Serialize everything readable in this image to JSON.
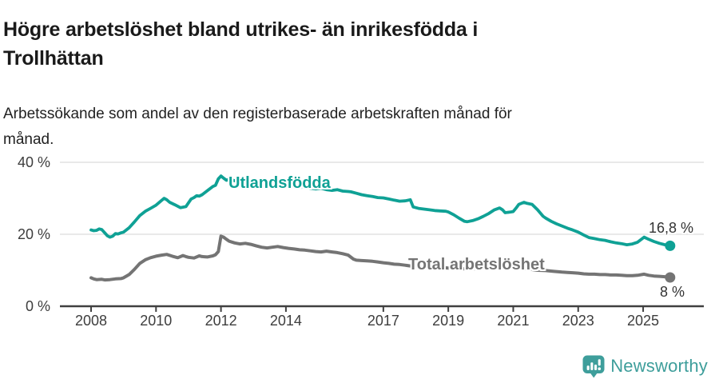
{
  "header": {
    "title_line1": "Högre arbetslöshet bland utrikes- än inrikesfödda i",
    "title_line2": "Trollhättan",
    "subtitle_line1": "Arbetssökande som andel av den registerbaserade arbetskraften månad för",
    "subtitle_line2": "månad."
  },
  "footer": {
    "brand": "Newsworthy",
    "logo_icon": "bar-chart-speech-bubble-icon",
    "brand_color": "#3e9e9b"
  },
  "colors": {
    "accent_teal": "#0fa195",
    "line_gray": "#747474",
    "axis": "#404040",
    "grid": "#e2e2e2",
    "tick_text": "#3d3d3d",
    "value_text": "#333333"
  },
  "chart_data": {
    "type": "line",
    "title": "Högre arbetslöshet bland utrikes- än inrikesfödda i Trollhättan",
    "subtitle": "Arbetssökande som andel av den registerbaserade arbetskraften månad för månad.",
    "xlabel": "",
    "ylabel": "",
    "x_unit": "decimal_year",
    "xlim": [
      2007.05,
      2026.85
    ],
    "ylim": [
      0,
      42
    ],
    "grid": "horizontal-only",
    "legend_position": "inline-labels",
    "y_ticks": [
      {
        "value": 0,
        "label": "0 %"
      },
      {
        "value": 20,
        "label": "20 %"
      },
      {
        "value": 40,
        "label": "40 %"
      }
    ],
    "x_ticks": [
      {
        "value": 2008,
        "label": "2008"
      },
      {
        "value": 2010,
        "label": "2010"
      },
      {
        "value": 2012,
        "label": "2012"
      },
      {
        "value": 2014,
        "label": "2014"
      },
      {
        "value": 2017,
        "label": "2017"
      },
      {
        "value": 2019,
        "label": "2019"
      },
      {
        "value": 2021,
        "label": "2021"
      },
      {
        "value": 2023,
        "label": "2023"
      },
      {
        "value": 2025,
        "label": "2025"
      }
    ],
    "grid_values": [
      20,
      40
    ],
    "series": [
      {
        "name": "Utlandsfödda",
        "color": "#0fa195",
        "stroke_width": 3.8,
        "end_label": "16,8 %",
        "end_value": 16.8,
        "points": [
          [
            2008.0,
            21.2
          ],
          [
            2008.08,
            21.0
          ],
          [
            2008.17,
            21.1
          ],
          [
            2008.25,
            21.5
          ],
          [
            2008.33,
            21.3
          ],
          [
            2008.42,
            20.4
          ],
          [
            2008.5,
            19.6
          ],
          [
            2008.58,
            19.2
          ],
          [
            2008.67,
            19.5
          ],
          [
            2008.75,
            20.2
          ],
          [
            2008.83,
            20.1
          ],
          [
            2008.92,
            20.4
          ],
          [
            2009.0,
            20.6
          ],
          [
            2009.17,
            21.8
          ],
          [
            2009.33,
            23.4
          ],
          [
            2009.5,
            25.2
          ],
          [
            2009.67,
            26.4
          ],
          [
            2009.83,
            27.2
          ],
          [
            2010.0,
            28.1
          ],
          [
            2010.17,
            29.4
          ],
          [
            2010.25,
            30.0
          ],
          [
            2010.33,
            29.6
          ],
          [
            2010.42,
            28.9
          ],
          [
            2010.58,
            28.2
          ],
          [
            2010.75,
            27.4
          ],
          [
            2010.92,
            27.7
          ],
          [
            2011.08,
            29.8
          ],
          [
            2011.17,
            30.2
          ],
          [
            2011.25,
            30.7
          ],
          [
            2011.33,
            30.6
          ],
          [
            2011.42,
            31.0
          ],
          [
            2011.58,
            32.1
          ],
          [
            2011.75,
            33.3
          ],
          [
            2011.83,
            33.6
          ],
          [
            2011.92,
            35.4
          ],
          [
            2012.0,
            36.2
          ],
          [
            2012.08,
            35.6
          ],
          [
            2012.17,
            35.0
          ],
          [
            2012.25,
            35.3
          ],
          [
            2012.42,
            34.9
          ],
          [
            2012.58,
            34.6
          ],
          [
            2012.75,
            34.8
          ],
          [
            2012.92,
            34.4
          ],
          [
            2013.08,
            34.6
          ],
          [
            2013.25,
            34.2
          ],
          [
            2013.42,
            33.9
          ],
          [
            2013.58,
            34.1
          ],
          [
            2013.75,
            33.7
          ],
          [
            2013.92,
            33.4
          ],
          [
            2014.08,
            33.6
          ],
          [
            2014.25,
            33.2
          ],
          [
            2014.42,
            33.0
          ],
          [
            2014.58,
            33.2
          ],
          [
            2014.75,
            32.8
          ],
          [
            2014.92,
            32.6
          ],
          [
            2015.08,
            32.8
          ],
          [
            2015.25,
            32.4
          ],
          [
            2015.42,
            32.2
          ],
          [
            2015.58,
            32.4
          ],
          [
            2015.75,
            32.0
          ],
          [
            2015.92,
            31.9
          ],
          [
            2016.0,
            31.8
          ],
          [
            2016.17,
            31.4
          ],
          [
            2016.33,
            31.0
          ],
          [
            2016.5,
            30.7
          ],
          [
            2016.67,
            30.5
          ],
          [
            2016.83,
            30.2
          ],
          [
            2017.0,
            30.1
          ],
          [
            2017.17,
            29.8
          ],
          [
            2017.33,
            29.5
          ],
          [
            2017.5,
            29.2
          ],
          [
            2017.67,
            29.3
          ],
          [
            2017.83,
            29.6
          ],
          [
            2017.92,
            27.6
          ],
          [
            2018.08,
            27.2
          ],
          [
            2018.25,
            27.0
          ],
          [
            2018.42,
            26.8
          ],
          [
            2018.58,
            26.6
          ],
          [
            2018.75,
            26.5
          ],
          [
            2018.92,
            26.4
          ],
          [
            2019.0,
            26.2
          ],
          [
            2019.17,
            25.4
          ],
          [
            2019.33,
            24.5
          ],
          [
            2019.5,
            23.6
          ],
          [
            2019.58,
            23.5
          ],
          [
            2019.75,
            23.8
          ],
          [
            2019.92,
            24.3
          ],
          [
            2020.08,
            25.0
          ],
          [
            2020.25,
            25.8
          ],
          [
            2020.42,
            26.8
          ],
          [
            2020.58,
            27.3
          ],
          [
            2020.67,
            26.8
          ],
          [
            2020.75,
            26.0
          ],
          [
            2020.92,
            26.2
          ],
          [
            2021.0,
            26.3
          ],
          [
            2021.08,
            27.2
          ],
          [
            2021.17,
            28.3
          ],
          [
            2021.33,
            28.9
          ],
          [
            2021.42,
            28.6
          ],
          [
            2021.58,
            28.3
          ],
          [
            2021.75,
            26.8
          ],
          [
            2021.92,
            25.0
          ],
          [
            2022.0,
            24.5
          ],
          [
            2022.17,
            23.6
          ],
          [
            2022.33,
            22.9
          ],
          [
            2022.5,
            22.3
          ],
          [
            2022.67,
            21.7
          ],
          [
            2022.83,
            21.2
          ],
          [
            2023.0,
            20.6
          ],
          [
            2023.17,
            19.8
          ],
          [
            2023.33,
            19.1
          ],
          [
            2023.5,
            18.8
          ],
          [
            2023.67,
            18.5
          ],
          [
            2023.83,
            18.3
          ],
          [
            2024.0,
            17.9
          ],
          [
            2024.17,
            17.6
          ],
          [
            2024.33,
            17.4
          ],
          [
            2024.5,
            17.1
          ],
          [
            2024.67,
            17.3
          ],
          [
            2024.83,
            17.8
          ],
          [
            2025.03,
            19.2
          ],
          [
            2025.17,
            18.6
          ],
          [
            2025.33,
            18.0
          ],
          [
            2025.5,
            17.5
          ],
          [
            2025.67,
            17.1
          ],
          [
            2025.83,
            16.8
          ]
        ]
      },
      {
        "name": "Total arbetslöshet",
        "color": "#747474",
        "stroke_width": 4.0,
        "end_label": "8 %",
        "end_value": 8.0,
        "points": [
          [
            2008.0,
            7.9
          ],
          [
            2008.08,
            7.6
          ],
          [
            2008.17,
            7.4
          ],
          [
            2008.33,
            7.5
          ],
          [
            2008.42,
            7.3
          ],
          [
            2008.58,
            7.4
          ],
          [
            2008.75,
            7.6
          ],
          [
            2008.92,
            7.7
          ],
          [
            2009.0,
            7.9
          ],
          [
            2009.17,
            8.8
          ],
          [
            2009.33,
            10.2
          ],
          [
            2009.5,
            11.9
          ],
          [
            2009.67,
            12.9
          ],
          [
            2009.83,
            13.5
          ],
          [
            2010.0,
            13.9
          ],
          [
            2010.17,
            14.2
          ],
          [
            2010.33,
            14.4
          ],
          [
            2010.5,
            13.9
          ],
          [
            2010.67,
            13.5
          ],
          [
            2010.83,
            14.1
          ],
          [
            2010.92,
            13.8
          ],
          [
            2011.0,
            13.6
          ],
          [
            2011.17,
            13.4
          ],
          [
            2011.33,
            14.0
          ],
          [
            2011.42,
            13.8
          ],
          [
            2011.58,
            13.7
          ],
          [
            2011.75,
            14.0
          ],
          [
            2011.83,
            14.3
          ],
          [
            2011.92,
            15.2
          ],
          [
            2012.0,
            19.5
          ],
          [
            2012.08,
            19.2
          ],
          [
            2012.17,
            18.6
          ],
          [
            2012.25,
            18.1
          ],
          [
            2012.42,
            17.6
          ],
          [
            2012.58,
            17.3
          ],
          [
            2012.75,
            17.5
          ],
          [
            2012.92,
            17.2
          ],
          [
            2013.08,
            16.8
          ],
          [
            2013.25,
            16.4
          ],
          [
            2013.42,
            16.2
          ],
          [
            2013.58,
            16.4
          ],
          [
            2013.75,
            16.6
          ],
          [
            2013.92,
            16.3
          ],
          [
            2014.08,
            16.1
          ],
          [
            2014.25,
            15.9
          ],
          [
            2014.42,
            15.7
          ],
          [
            2014.58,
            15.6
          ],
          [
            2014.75,
            15.4
          ],
          [
            2014.92,
            15.2
          ],
          [
            2015.08,
            15.1
          ],
          [
            2015.25,
            15.3
          ],
          [
            2015.42,
            15.1
          ],
          [
            2015.58,
            14.9
          ],
          [
            2015.75,
            14.6
          ],
          [
            2015.92,
            14.2
          ],
          [
            2016.08,
            13.1
          ],
          [
            2016.17,
            12.8
          ],
          [
            2016.33,
            12.7
          ],
          [
            2016.5,
            12.6
          ],
          [
            2016.67,
            12.5
          ],
          [
            2016.83,
            12.3
          ],
          [
            2017.0,
            12.1
          ],
          [
            2017.17,
            11.9
          ],
          [
            2017.33,
            11.7
          ],
          [
            2017.5,
            11.6
          ],
          [
            2017.67,
            11.4
          ],
          [
            2017.83,
            11.2
          ],
          [
            2018.0,
            11.1
          ],
          [
            2018.25,
            11.0
          ],
          [
            2018.5,
            10.9
          ],
          [
            2018.75,
            10.8
          ],
          [
            2019.0,
            10.6
          ],
          [
            2019.25,
            10.5
          ],
          [
            2019.5,
            10.4
          ],
          [
            2019.75,
            10.4
          ],
          [
            2020.0,
            10.5
          ],
          [
            2020.25,
            10.8
          ],
          [
            2020.5,
            11.0
          ],
          [
            2020.75,
            10.9
          ],
          [
            2021.0,
            10.7
          ],
          [
            2021.25,
            10.5
          ],
          [
            2021.5,
            10.3
          ],
          [
            2021.75,
            10.0
          ],
          [
            2022.0,
            9.9
          ],
          [
            2022.25,
            9.7
          ],
          [
            2022.5,
            9.5
          ],
          [
            2022.67,
            9.4
          ],
          [
            2022.83,
            9.3
          ],
          [
            2023.0,
            9.2
          ],
          [
            2023.17,
            9.0
          ],
          [
            2023.33,
            8.9
          ],
          [
            2023.5,
            8.9
          ],
          [
            2023.67,
            8.8
          ],
          [
            2023.83,
            8.8
          ],
          [
            2024.0,
            8.7
          ],
          [
            2024.17,
            8.7
          ],
          [
            2024.33,
            8.6
          ],
          [
            2024.5,
            8.5
          ],
          [
            2024.67,
            8.5
          ],
          [
            2024.83,
            8.6
          ],
          [
            2025.03,
            8.9
          ],
          [
            2025.17,
            8.6
          ],
          [
            2025.33,
            8.4
          ],
          [
            2025.5,
            8.3
          ],
          [
            2025.67,
            8.2
          ],
          [
            2025.83,
            8.0
          ]
        ]
      }
    ]
  }
}
